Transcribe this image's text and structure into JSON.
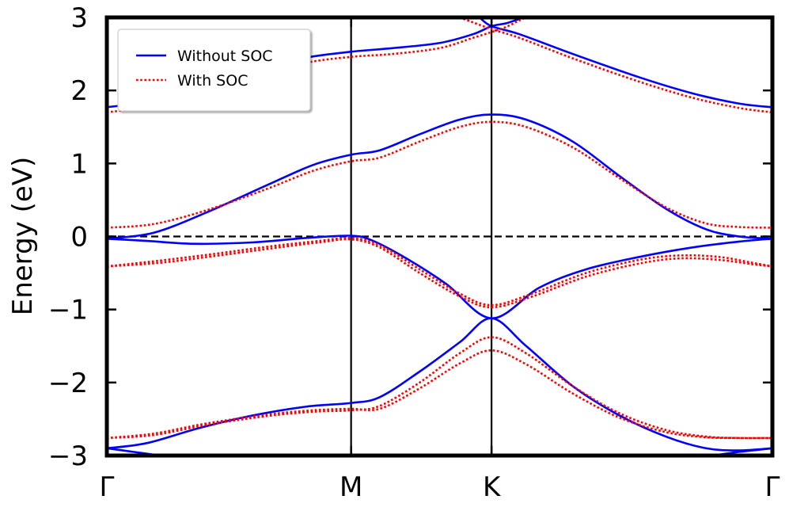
{
  "chart_data": {
    "type": "line",
    "title": "",
    "xlabel": "",
    "ylabel": "Energy (eV)",
    "ylim": [
      -3,
      3
    ],
    "xlim": [
      0,
      1
    ],
    "x_ticks": [
      {
        "label": "Γ",
        "x": 0.0
      },
      {
        "label": "M",
        "x": 0.367
      },
      {
        "label": "K",
        "x": 0.578
      },
      {
        "label": "Γ",
        "x": 1.0
      }
    ],
    "y_ticks": [
      -3,
      -2,
      -1,
      0,
      1,
      2,
      3
    ],
    "y_tick_labels": [
      "−3",
      "−2",
      "−1",
      "0",
      "1",
      "2",
      "3"
    ],
    "fermi_level": 0,
    "legend": {
      "position": "top-left",
      "entries": [
        {
          "label": "Without SOC",
          "color": "#0000ff",
          "style": "solid"
        },
        {
          "label": "With SOC",
          "color": "#ff0000",
          "style": "dotted"
        }
      ]
    },
    "series": [
      {
        "group": "Without SOC",
        "color": "#0000ff",
        "style": "solid",
        "points": [
          [
            0,
            1.77
          ],
          [
            0.06,
            1.85
          ],
          [
            0.14,
            2.06
          ],
          [
            0.24,
            2.3
          ],
          [
            0.3,
            2.45
          ],
          [
            0.367,
            2.53
          ],
          [
            0.43,
            2.58
          ],
          [
            0.5,
            2.65
          ],
          [
            0.55,
            2.77
          ],
          [
            0.578,
            2.88
          ],
          [
            0.6,
            2.92
          ],
          [
            0.62,
            2.98
          ]
        ]
      },
      {
        "group": "Without SOC",
        "color": "#0000ff",
        "style": "solid",
        "points": [
          [
            0.56,
            3.0
          ],
          [
            0.578,
            2.88
          ],
          [
            0.62,
            2.77
          ],
          [
            0.7,
            2.5
          ],
          [
            0.8,
            2.18
          ],
          [
            0.88,
            1.96
          ],
          [
            0.95,
            1.82
          ],
          [
            1.0,
            1.77
          ]
        ]
      },
      {
        "group": "Without SOC",
        "color": "#0000ff",
        "style": "solid",
        "points": [
          [
            0,
            -0.03
          ],
          [
            0.07,
            0.05
          ],
          [
            0.15,
            0.33
          ],
          [
            0.24,
            0.7
          ],
          [
            0.31,
            0.98
          ],
          [
            0.367,
            1.12
          ],
          [
            0.41,
            1.18
          ],
          [
            0.47,
            1.4
          ],
          [
            0.53,
            1.6
          ],
          [
            0.578,
            1.67
          ],
          [
            0.63,
            1.6
          ],
          [
            0.7,
            1.3
          ],
          [
            0.77,
            0.83
          ],
          [
            0.84,
            0.38
          ],
          [
            0.9,
            0.1
          ],
          [
            0.95,
            0.0
          ],
          [
            1.0,
            -0.03
          ]
        ]
      },
      {
        "group": "Without SOC",
        "color": "#0000ff",
        "style": "solid",
        "points": [
          [
            0,
            -0.03
          ],
          [
            0.06,
            -0.06
          ],
          [
            0.13,
            -0.1
          ],
          [
            0.22,
            -0.08
          ],
          [
            0.3,
            -0.02
          ],
          [
            0.367,
            0.01
          ],
          [
            0.4,
            -0.06
          ],
          [
            0.45,
            -0.3
          ],
          [
            0.51,
            -0.65
          ],
          [
            0.578,
            -1.12
          ],
          [
            0.65,
            -0.7
          ],
          [
            0.72,
            -0.45
          ],
          [
            0.8,
            -0.28
          ],
          [
            0.88,
            -0.15
          ],
          [
            0.95,
            -0.07
          ],
          [
            1.0,
            -0.03
          ]
        ]
      },
      {
        "group": "Without SOC",
        "color": "#0000ff",
        "style": "solid",
        "points": [
          [
            0,
            -2.9
          ],
          [
            0.06,
            -2.83
          ],
          [
            0.14,
            -2.62
          ],
          [
            0.22,
            -2.45
          ],
          [
            0.3,
            -2.33
          ],
          [
            0.367,
            -2.28
          ],
          [
            0.41,
            -2.2
          ],
          [
            0.47,
            -1.85
          ],
          [
            0.53,
            -1.45
          ],
          [
            0.578,
            -1.12
          ],
          [
            0.63,
            -1.5
          ],
          [
            0.7,
            -2.05
          ],
          [
            0.77,
            -2.45
          ],
          [
            0.84,
            -2.74
          ],
          [
            0.9,
            -2.9
          ],
          [
            0.95,
            -2.93
          ],
          [
            1.0,
            -2.9
          ]
        ]
      },
      {
        "group": "Without SOC",
        "color": "#0000ff",
        "style": "solid",
        "points": [
          [
            0,
            -2.9
          ],
          [
            0.04,
            -2.95
          ],
          [
            0.08,
            -3.0
          ]
        ]
      },
      {
        "group": "Without SOC",
        "color": "#0000ff",
        "style": "solid",
        "points": [
          [
            0.91,
            -3.0
          ],
          [
            0.95,
            -2.95
          ],
          [
            1.0,
            -2.9
          ]
        ]
      },
      {
        "group": "With SOC",
        "color": "#ff0000",
        "style": "dotted",
        "points": [
          [
            0,
            1.7
          ],
          [
            0.06,
            1.78
          ],
          [
            0.14,
            1.98
          ],
          [
            0.24,
            2.22
          ],
          [
            0.3,
            2.38
          ],
          [
            0.367,
            2.46
          ],
          [
            0.43,
            2.5
          ],
          [
            0.5,
            2.58
          ],
          [
            0.55,
            2.72
          ],
          [
            0.578,
            2.8
          ],
          [
            0.6,
            2.87
          ],
          [
            0.62,
            2.96
          ],
          [
            0.63,
            3.0
          ]
        ]
      },
      {
        "group": "With SOC",
        "color": "#ff0000",
        "style": "dotted",
        "points": [
          [
            0.53,
            3.0
          ],
          [
            0.578,
            2.84
          ],
          [
            0.62,
            2.72
          ],
          [
            0.7,
            2.44
          ],
          [
            0.8,
            2.12
          ],
          [
            0.88,
            1.9
          ],
          [
            0.95,
            1.76
          ],
          [
            1.0,
            1.7
          ]
        ]
      },
      {
        "group": "With SOC",
        "color": "#ff0000",
        "style": "dotted",
        "points": [
          [
            0,
            0.12
          ],
          [
            0.07,
            0.17
          ],
          [
            0.15,
            0.36
          ],
          [
            0.24,
            0.65
          ],
          [
            0.31,
            0.9
          ],
          [
            0.367,
            1.03
          ],
          [
            0.41,
            1.08
          ],
          [
            0.47,
            1.3
          ],
          [
            0.53,
            1.5
          ],
          [
            0.578,
            1.57
          ],
          [
            0.63,
            1.5
          ],
          [
            0.7,
            1.22
          ],
          [
            0.77,
            0.8
          ],
          [
            0.84,
            0.4
          ],
          [
            0.9,
            0.18
          ],
          [
            0.95,
            0.13
          ],
          [
            1.0,
            0.12
          ]
        ]
      },
      {
        "group": "With SOC",
        "color": "#ff0000",
        "style": "dotted",
        "points": [
          [
            0,
            -0.41
          ],
          [
            0.08,
            -0.36
          ],
          [
            0.16,
            -0.27
          ],
          [
            0.25,
            -0.16
          ],
          [
            0.32,
            -0.08
          ],
          [
            0.367,
            -0.04
          ],
          [
            0.41,
            -0.15
          ],
          [
            0.47,
            -0.5
          ],
          [
            0.53,
            -0.82
          ],
          [
            0.578,
            -0.97
          ],
          [
            0.64,
            -0.82
          ],
          [
            0.72,
            -0.55
          ],
          [
            0.8,
            -0.37
          ],
          [
            0.86,
            -0.3
          ],
          [
            0.92,
            -0.32
          ],
          [
            0.97,
            -0.38
          ],
          [
            1.0,
            -0.41
          ]
        ]
      },
      {
        "group": "With SOC",
        "color": "#ff0000",
        "style": "dotted",
        "points": [
          [
            0,
            -0.41
          ],
          [
            0.08,
            -0.33
          ],
          [
            0.16,
            -0.24
          ],
          [
            0.25,
            -0.13
          ],
          [
            0.32,
            -0.06
          ],
          [
            0.367,
            -0.02
          ],
          [
            0.41,
            -0.12
          ],
          [
            0.47,
            -0.45
          ],
          [
            0.53,
            -0.78
          ],
          [
            0.578,
            -0.94
          ],
          [
            0.64,
            -0.78
          ],
          [
            0.72,
            -0.5
          ],
          [
            0.8,
            -0.32
          ],
          [
            0.86,
            -0.26
          ],
          [
            0.92,
            -0.28
          ],
          [
            0.97,
            -0.36
          ],
          [
            1.0,
            -0.41
          ]
        ]
      },
      {
        "group": "With SOC",
        "color": "#ff0000",
        "style": "dotted",
        "points": [
          [
            0,
            -2.76
          ],
          [
            0.07,
            -2.72
          ],
          [
            0.15,
            -2.58
          ],
          [
            0.24,
            -2.46
          ],
          [
            0.31,
            -2.4
          ],
          [
            0.367,
            -2.38
          ],
          [
            0.41,
            -2.32
          ],
          [
            0.47,
            -2.0
          ],
          [
            0.53,
            -1.6
          ],
          [
            0.578,
            -1.38
          ],
          [
            0.63,
            -1.6
          ],
          [
            0.7,
            -2.05
          ],
          [
            0.77,
            -2.42
          ],
          [
            0.84,
            -2.65
          ],
          [
            0.9,
            -2.74
          ],
          [
            0.95,
            -2.76
          ],
          [
            1.0,
            -2.76
          ]
        ]
      },
      {
        "group": "With SOC",
        "color": "#ff0000",
        "style": "dotted",
        "points": [
          [
            0,
            -2.76
          ],
          [
            0.07,
            -2.7
          ],
          [
            0.15,
            -2.56
          ],
          [
            0.24,
            -2.44
          ],
          [
            0.31,
            -2.38
          ],
          [
            0.367,
            -2.36
          ],
          [
            0.41,
            -2.36
          ],
          [
            0.47,
            -2.08
          ],
          [
            0.53,
            -1.74
          ],
          [
            0.578,
            -1.56
          ],
          [
            0.63,
            -1.75
          ],
          [
            0.7,
            -2.15
          ],
          [
            0.77,
            -2.48
          ],
          [
            0.84,
            -2.68
          ],
          [
            0.9,
            -2.75
          ],
          [
            0.95,
            -2.76
          ],
          [
            1.0,
            -2.76
          ]
        ]
      }
    ]
  }
}
